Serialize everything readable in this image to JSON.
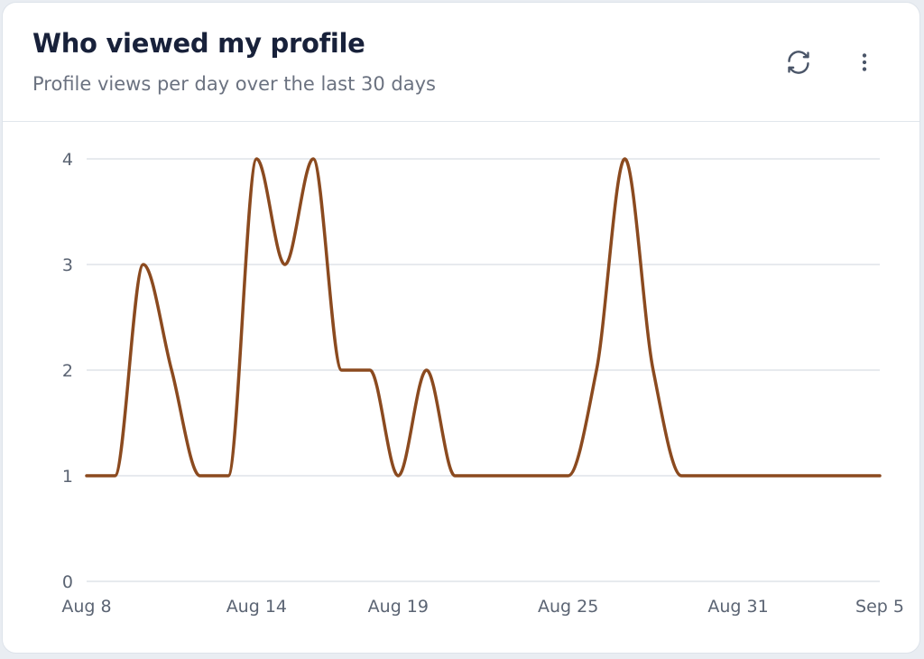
{
  "header": {
    "title": "Who viewed my profile",
    "subtitle": "Profile views per day over the last 30 days"
  },
  "toolbar": {
    "refresh_icon": "refresh-icon",
    "more_icon": "more-vertical-icon"
  },
  "colors": {
    "line": "#8b4a1f",
    "grid": "#dfe3e8",
    "text": "#5b6473"
  },
  "chart_data": {
    "type": "line",
    "title": "",
    "xlabel": "",
    "ylabel": "",
    "ylim": [
      0,
      4
    ],
    "yticks": [
      0,
      1,
      2,
      3,
      4
    ],
    "grid": true,
    "smooth": true,
    "x_tick_labels": [
      "Aug 8",
      "Aug 14",
      "Aug 19",
      "Aug 25",
      "Aug 31",
      "Sep 5"
    ],
    "x": [
      "Aug 8",
      "Aug 9",
      "Aug 10",
      "Aug 11",
      "Aug 12",
      "Aug 13",
      "Aug 14",
      "Aug 15",
      "Aug 16",
      "Aug 17",
      "Aug 18",
      "Aug 19",
      "Aug 20",
      "Aug 21",
      "Aug 22",
      "Aug 23",
      "Aug 24",
      "Aug 25",
      "Aug 26",
      "Aug 27",
      "Aug 28",
      "Aug 29",
      "Aug 30",
      "Aug 31",
      "Sep 1",
      "Sep 2",
      "Sep 3",
      "Sep 4",
      "Sep 5"
    ],
    "series": [
      {
        "values": [
          1,
          1,
          3,
          2,
          1,
          1,
          4,
          3,
          4,
          2,
          2,
          1,
          2,
          1,
          1,
          1,
          1,
          1,
          2,
          4,
          2,
          1,
          1,
          1,
          1,
          1,
          1,
          1,
          1
        ]
      }
    ]
  }
}
